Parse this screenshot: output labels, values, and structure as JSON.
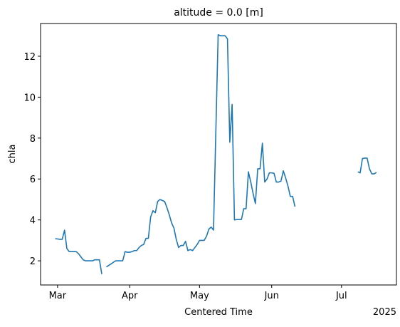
{
  "chart_data": {
    "type": "line",
    "title": "altitude = 0.0 [m]",
    "x_label": "Centered Time",
    "y_label": "chla",
    "x_offset_label": "2025",
    "x": [
      59,
      60,
      61,
      62,
      63,
      64,
      65,
      66,
      67,
      68,
      69,
      70,
      71,
      72,
      73,
      74,
      75,
      76,
      77,
      78,
      79,
      80,
      81,
      82,
      83,
      84,
      85,
      86,
      87,
      88,
      89,
      90,
      91,
      92,
      93,
      94,
      95,
      96,
      97,
      98,
      99,
      100,
      101,
      102,
      103,
      104,
      105,
      106,
      107,
      108,
      109,
      110,
      111,
      112,
      113,
      114,
      115,
      116,
      117,
      118,
      119,
      120,
      121,
      122,
      123,
      124,
      125,
      126,
      127,
      128,
      129,
      130,
      131,
      132,
      133,
      134,
      135,
      136,
      137,
      138,
      139,
      140,
      141,
      142,
      143,
      144,
      145,
      146,
      147,
      148,
      149,
      150,
      151,
      152,
      153,
      154,
      155,
      156,
      157,
      158,
      159,
      160,
      161,
      162,
      175,
      189,
      190,
      191,
      192,
      193,
      194,
      195,
      196,
      197
    ],
    "series": [
      {
        "name": "chla",
        "color": "#1f77b4",
        "values": [
          3.08,
          3.07,
          3.05,
          3.05,
          3.5,
          2.6,
          2.45,
          2.45,
          2.45,
          2.45,
          2.35,
          2.2,
          2.05,
          2.0,
          2.0,
          2.0,
          2.0,
          2.05,
          2.05,
          2.05,
          1.35,
          null,
          1.7,
          1.78,
          1.85,
          1.93,
          2.0,
          2.0,
          2.0,
          2.0,
          2.45,
          2.42,
          2.42,
          2.45,
          2.5,
          2.5,
          2.65,
          2.75,
          2.8,
          3.1,
          3.1,
          4.15,
          4.45,
          4.35,
          4.9,
          5.0,
          4.95,
          4.9,
          4.6,
          4.25,
          3.85,
          3.6,
          3.05,
          2.65,
          2.75,
          2.75,
          2.95,
          2.5,
          2.55,
          2.5,
          2.65,
          2.8,
          3.0,
          3.0,
          3.0,
          3.2,
          3.55,
          3.65,
          3.5,
          8.3,
          13.05,
          13.0,
          13.0,
          13.0,
          12.85,
          7.8,
          9.65,
          4.0,
          4.02,
          4.02,
          4.02,
          4.55,
          4.55,
          6.35,
          5.85,
          5.3,
          4.8,
          6.5,
          6.5,
          7.75,
          5.85,
          6.0,
          6.3,
          6.3,
          6.28,
          5.85,
          5.85,
          5.9,
          6.4,
          6.05,
          5.65,
          5.15,
          5.15,
          4.65,
          null,
          6.35,
          6.3,
          7.0,
          7.02,
          7.02,
          6.5,
          6.25,
          6.25,
          6.32
        ]
      }
    ],
    "xlim": [
      52.7,
      205.6
    ],
    "ylim": [
      0.82,
      13.6
    ],
    "xticks": [
      {
        "value": 60,
        "label": "Mar"
      },
      {
        "value": 91,
        "label": "Apr"
      },
      {
        "value": 121,
        "label": "May"
      },
      {
        "value": 152,
        "label": "Jun"
      },
      {
        "value": 182,
        "label": "Jul"
      }
    ],
    "yticks": [
      2,
      4,
      6,
      8,
      10,
      12
    ],
    "grid": false
  }
}
